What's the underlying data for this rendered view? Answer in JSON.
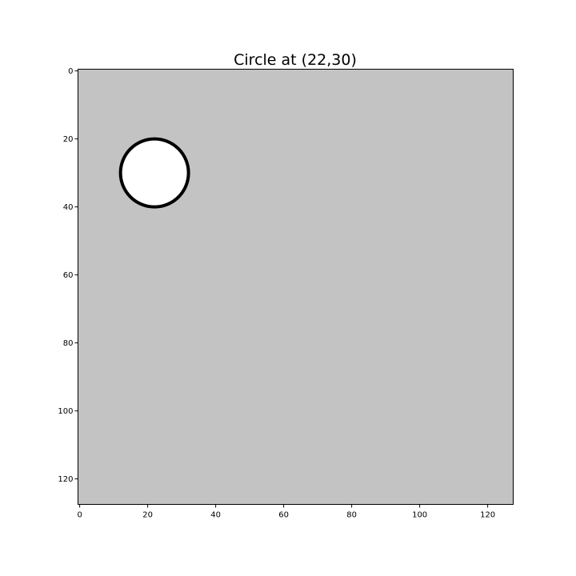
{
  "chart_data": {
    "type": "heatmap",
    "title": "Circle at (22,30)",
    "xlabel": "",
    "ylabel": "",
    "xlim": [
      -0.5,
      127.5
    ],
    "ylim": [
      127.5,
      -0.5
    ],
    "x_ticks": [
      0,
      20,
      40,
      60,
      80,
      100,
      120
    ],
    "y_ticks": [
      0,
      20,
      40,
      60,
      80,
      100,
      120
    ],
    "grid": false,
    "image": {
      "width": 128,
      "height": 128,
      "background_color": "#c3c3c3",
      "shapes": [
        {
          "kind": "circle",
          "center_x": 22,
          "center_y": 30,
          "radius": 10,
          "fill_color": "#ffffff",
          "edge_color": "#000000"
        }
      ]
    }
  }
}
